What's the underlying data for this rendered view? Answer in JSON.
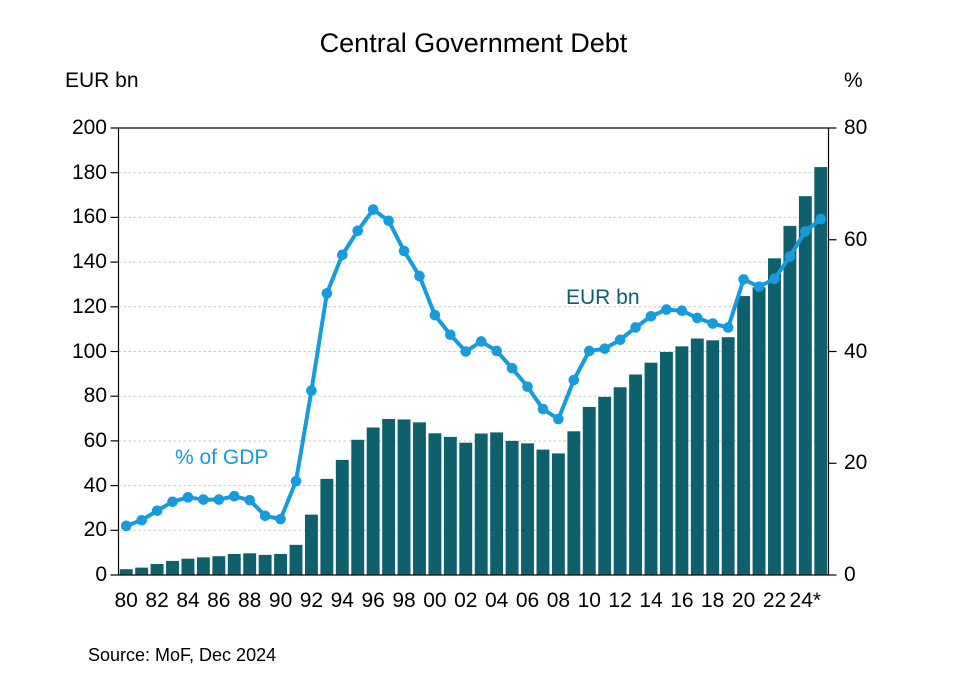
{
  "chart": {
    "title": "Central Government Debt",
    "left_axis_title": "EUR bn",
    "right_axis_title": "%",
    "series_label_bars": "EUR bn",
    "series_label_line": "% of GDP",
    "source": "Source: MoF, Dec 2024"
  },
  "colors": {
    "bar": "#0e616c",
    "line": "#169bdf",
    "grid": "#c9c9c9",
    "axis": "#000000",
    "background": "#ffffff",
    "text": "#000000"
  },
  "chart_data": {
    "type": "bar",
    "subtype": "bar-and-line combo, dual axis",
    "title": "Central Government Debt",
    "x": [
      1980,
      1981,
      1982,
      1983,
      1984,
      1985,
      1986,
      1987,
      1988,
      1989,
      1990,
      1991,
      1992,
      1993,
      1994,
      1995,
      1996,
      1997,
      1998,
      1999,
      2000,
      2001,
      2002,
      2003,
      2004,
      2005,
      2006,
      2007,
      2008,
      2009,
      2010,
      2011,
      2012,
      2013,
      2014,
      2015,
      2016,
      2017,
      2018,
      2019,
      2020,
      2021,
      2022,
      2023,
      2024,
      2025
    ],
    "x_tick_labels": [
      "80",
      "82",
      "84",
      "86",
      "88",
      "90",
      "92",
      "94",
      "96",
      "98",
      "00",
      "02",
      "04",
      "06",
      "08",
      "10",
      "12",
      "14",
      "16",
      "18",
      "20",
      "22",
      "24*"
    ],
    "series": [
      {
        "name": "EUR bn",
        "type": "bar",
        "axis": "left",
        "color": "#0e616c",
        "values": [
          2.6,
          3.3,
          4.9,
          6.3,
          7.3,
          7.9,
          8.4,
          9.4,
          9.7,
          9.0,
          9.4,
          13.5,
          27.0,
          43.0,
          51.5,
          60.5,
          66.0,
          69.8,
          69.6,
          68.3,
          63.4,
          61.8,
          59.2,
          63.3,
          63.8,
          60.0,
          58.9,
          56.1,
          54.4,
          64.3,
          75.2,
          79.7,
          84.0,
          89.7,
          95.0,
          99.8,
          102.3,
          105.8,
          105.0,
          106.4,
          124.8,
          128.7,
          141.7,
          156.2,
          169.5,
          182.5
        ]
      },
      {
        "name": "% of GDP",
        "type": "line",
        "axis": "right",
        "color": "#169bdf",
        "values": [
          8.8,
          9.8,
          11.5,
          13.1,
          13.9,
          13.5,
          13.5,
          14.1,
          13.4,
          10.6,
          10.0,
          16.8,
          33.0,
          50.4,
          57.3,
          61.6,
          65.4,
          63.4,
          58.0,
          53.5,
          46.5,
          43.0,
          40.0,
          41.8,
          40.1,
          37.0,
          33.7,
          29.7,
          27.9,
          34.9,
          40.1,
          40.5,
          42.1,
          44.3,
          46.3,
          47.5,
          47.3,
          46.0,
          45.0,
          44.3,
          52.9,
          51.6,
          53.0,
          57.0,
          61.5,
          63.7
        ]
      }
    ],
    "left_axis": {
      "title": "EUR bn",
      "range": [
        0,
        200
      ],
      "tick_step": 20,
      "tick_labels": [
        "0",
        "20",
        "40",
        "60",
        "80",
        "100",
        "120",
        "140",
        "160",
        "180",
        "200"
      ]
    },
    "right_axis": {
      "title": "%",
      "range": [
        0,
        80
      ],
      "tick_step": 20,
      "tick_labels": [
        "0",
        "20",
        "40",
        "60",
        "80"
      ]
    },
    "grid": "horizontal dashed gray lines every 20 units of left axis",
    "legend": "inline colored text labels on plot",
    "source": "Source: MoF, Dec 2024"
  }
}
